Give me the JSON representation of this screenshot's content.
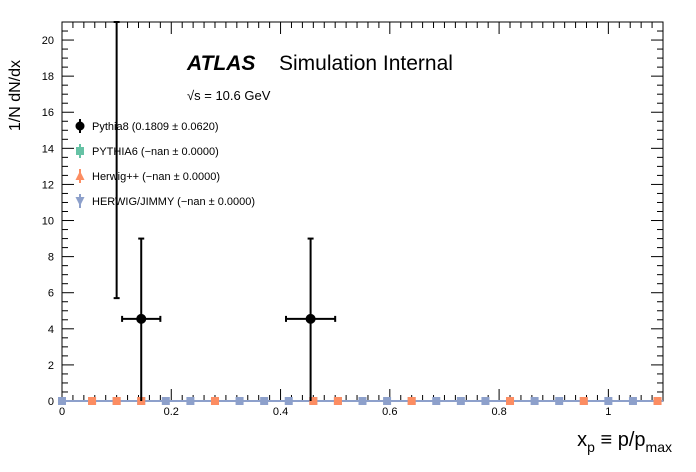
{
  "chart_data": {
    "type": "scatter",
    "xlim": [
      0,
      1.1
    ],
    "ylim": [
      0,
      21
    ],
    "xlabel_main": "x",
    "xlabel_sub": "p",
    "xlabel_eq": " ≡ p/p",
    "xlabel_sub2": "max",
    "ylabel": "1/N dN/dx",
    "x_ticks": [
      0,
      0.2,
      0.4,
      0.6,
      0.8,
      1
    ],
    "x_tick_labels": [
      "0",
      "0.2",
      "0.4",
      "0.6",
      "0.8",
      "1"
    ],
    "y_ticks": [
      0,
      2,
      4,
      6,
      8,
      10,
      12,
      14,
      16,
      18,
      20
    ],
    "y_tick_labels": [
      "0",
      "2",
      "4",
      "6",
      "8",
      "10",
      "12",
      "14",
      "16",
      "18",
      "20"
    ],
    "atlas_label": "ATLAS",
    "atlas_sub": "Simulation Internal",
    "energy_sqrt": "√s",
    "energy_text": " = 10.6 GeV",
    "legend": [
      {
        "text": "Pythia8 (0.1809 ± 0.0620)",
        "color": "#000000",
        "marker": "circle"
      },
      {
        "text": "PYTHIA6 (−nan ± 0.0000)",
        "color": "#66c2a5",
        "marker": "square"
      },
      {
        "text": "Herwig++ (−nan ± 0.0000)",
        "color": "#fc8d62",
        "marker": "triangle-up"
      },
      {
        "text": "HERWIG/JIMMY (−nan ± 0.0000)",
        "color": "#8da0cb",
        "marker": "triangle-down"
      }
    ],
    "series": [
      {
        "name": "Pythia8",
        "color": "#000000",
        "points": [
          {
            "x": 0.145,
            "y": 4.55,
            "xerr": 0.035,
            "ylo": 0.0,
            "yhi": 9.0
          },
          {
            "x": 0.455,
            "y": 4.55,
            "xerr": 0.045,
            "ylo": 0.0,
            "yhi": 9.0
          }
        ],
        "extra_error_bars": [
          {
            "x": 0.1,
            "ylo": 5.7,
            "yhi": 21
          }
        ]
      },
      {
        "name": "HERWIG/JIMMY",
        "color": "#8da0cb",
        "flat_value": 0,
        "line": true,
        "x": [
          0.0,
          0.055,
          0.1,
          0.145,
          0.19,
          0.235,
          0.28,
          0.325,
          0.37,
          0.415,
          0.46,
          0.505,
          0.55,
          0.595,
          0.64,
          0.685,
          0.73,
          0.775,
          0.82,
          0.865,
          0.91,
          0.955,
          1.0,
          1.045,
          1.09
        ]
      },
      {
        "name": "Herwig++",
        "color": "#fc8d62",
        "flat_value": 0,
        "x": [
          0.055,
          0.1,
          0.145,
          0.28,
          0.46,
          0.505,
          0.64,
          0.82,
          0.955,
          1.09
        ]
      }
    ]
  }
}
